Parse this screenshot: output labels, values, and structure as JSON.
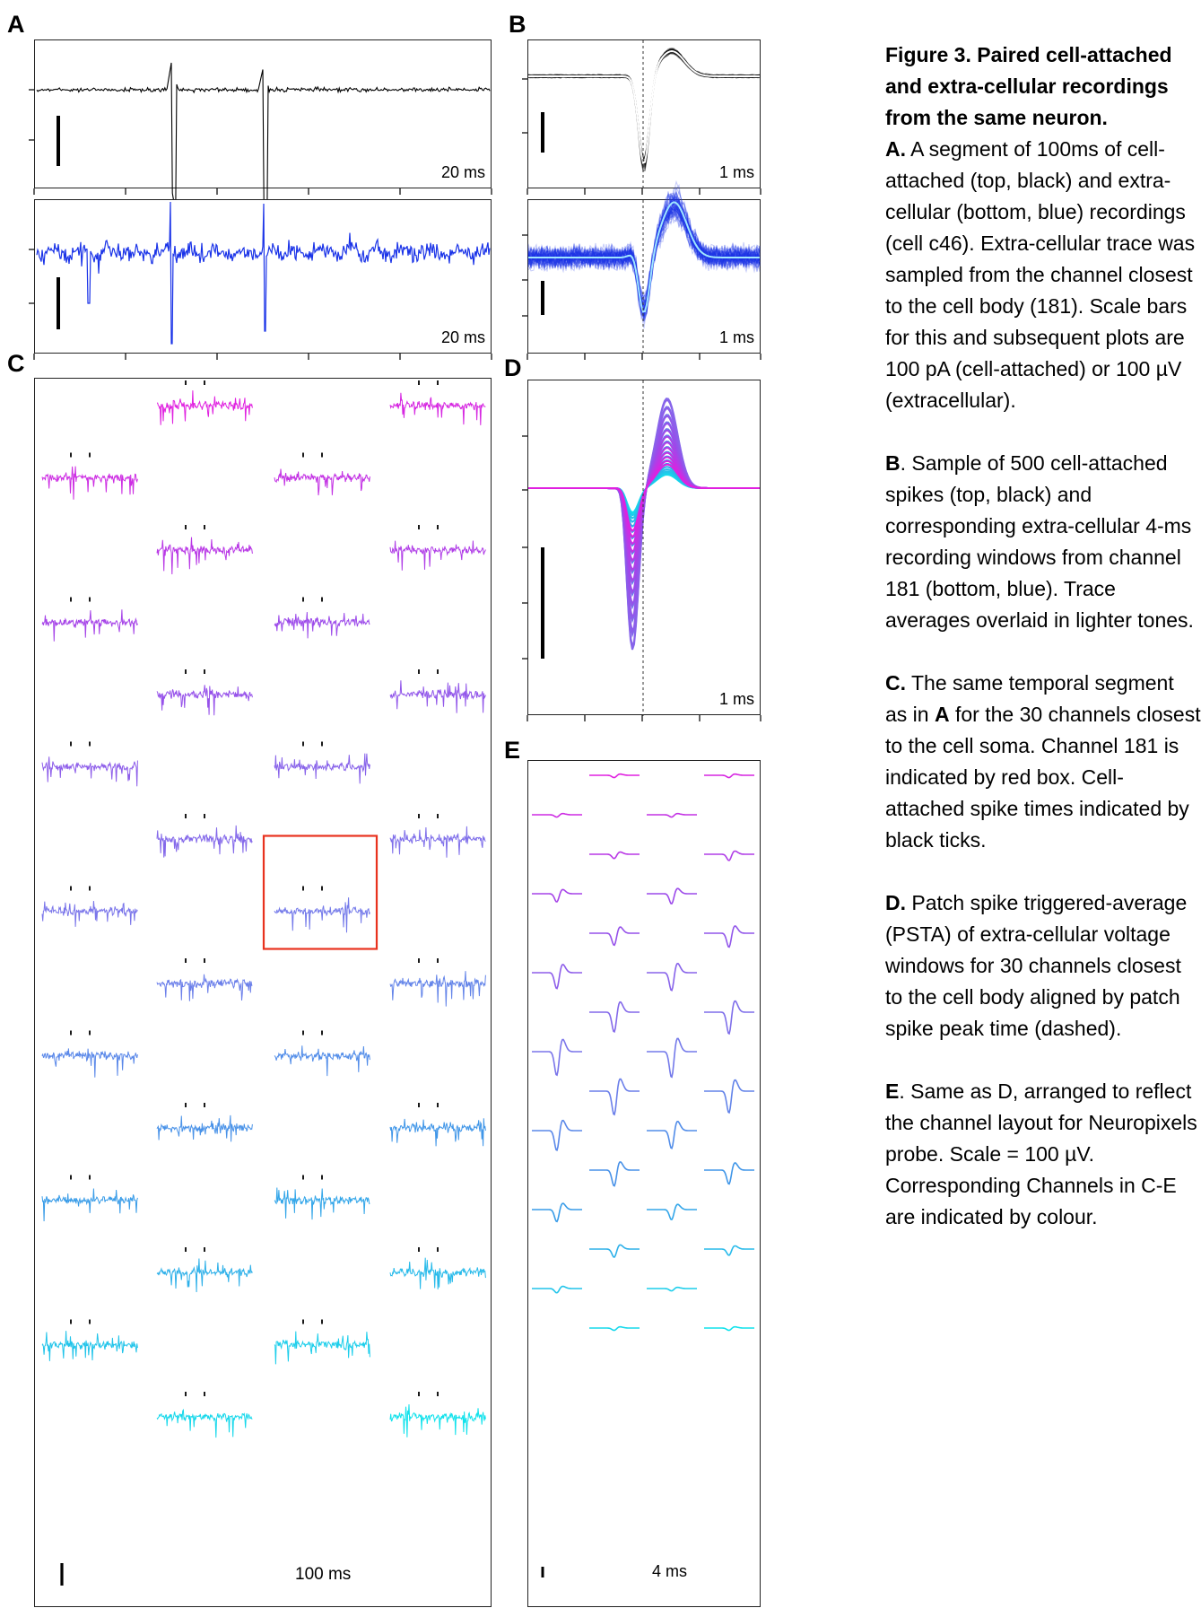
{
  "figure": {
    "panel_labels": {
      "a": "A",
      "b": "B",
      "c": "C",
      "d": "D",
      "e": "E"
    },
    "scale_labels": {
      "a_top": "20 ms",
      "a_bottom": "20 ms",
      "b_top": "1 ms",
      "b_bottom": "1 ms",
      "c": "100 ms",
      "d": "1 ms",
      "e": "4 ms"
    },
    "colors": {
      "cell_attached": "#000000",
      "extracellular": "#1a33e8",
      "highlight_box": "#e8321e",
      "channel_gradient": [
        "#e020e0",
        "#9a4cea",
        "#7878ea",
        "#3a9ae8",
        "#10e2ec"
      ]
    },
    "caption": {
      "title": "Figure 3. Paired cell-attached and extra-cellular recordings from the same neuron.",
      "a_key": "A.",
      "a_text": "A segment of 100ms of cell-attached (top, black) and extra-cellular (bottom, blue) recordings (cell c46). Extra-cellular trace was sampled from the channel closest to the cell body (181). Scale bars for this and subsequent plots are 100 pA (cell-attached) or 100 µV (extracellular).",
      "b_key": "B",
      "b_text": ". Sample of 500 cell-attached spikes (top, black) and corresponding extra-cellular 4-ms recording windows from channel 181 (bottom, blue). Trace averages overlaid in lighter tones.",
      "c_key": "C.",
      "c_text_1": "The same temporal segment as in",
      "c_ref": "A",
      "c_text_2": "for the 30 channels closest to the cell soma. Channel 181 is indicated by red box. Cell-attached spike times indicated by black ticks.",
      "d_key": "D.",
      "d_text": "Patch spike triggered-average (PSTA) of extra-cellular voltage windows for 30 channels closest to the cell body aligned by patch spike peak time (dashed).",
      "e_key": "E",
      "e_text": ". Same as D, arranged to reflect the channel layout for Neuropixels probe. Scale = 100 µV. Corresponding Channels in C-E are indicated by colour."
    }
  }
}
